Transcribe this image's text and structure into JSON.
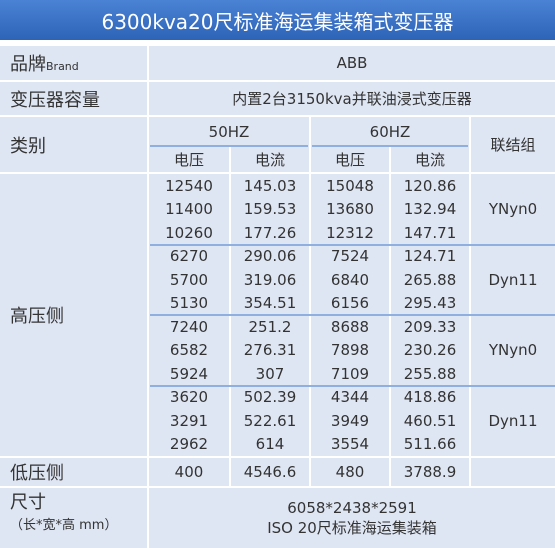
{
  "title": "6300kva20尺标准海运集装箱式变压器",
  "brand": {
    "label": "品牌",
    "label_sub": "Brand",
    "value": "ABB"
  },
  "capacity": {
    "label": "变压器容量",
    "value": "内置2台3150kva并联油浸式变压器"
  },
  "category": {
    "label": "类别",
    "freq": [
      "50HZ",
      "60HZ"
    ],
    "sub": [
      "电压",
      "电流",
      "电压",
      "电流"
    ],
    "group_label": "联结组"
  },
  "high": {
    "label": "高压侧",
    "groups": [
      {
        "connection": "YNyn0",
        "rows": [
          [
            "12540",
            "145.03",
            "15048",
            "120.86"
          ],
          [
            "11400",
            "159.53",
            "13680",
            "132.94"
          ],
          [
            "10260",
            "177.26",
            "12312",
            "147.71"
          ]
        ]
      },
      {
        "connection": "Dyn11",
        "rows": [
          [
            "6270",
            "290.06",
            "7524",
            "124.71"
          ],
          [
            "5700",
            "319.06",
            "6840",
            "265.88"
          ],
          [
            "5130",
            "354.51",
            "6156",
            "295.43"
          ]
        ]
      },
      {
        "connection": "YNyn0",
        "rows": [
          [
            "7240",
            "251.2",
            "8688",
            "209.33"
          ],
          [
            "6582",
            "276.31",
            "7898",
            "230.26"
          ],
          [
            "5924",
            "307",
            "7109",
            "255.88"
          ]
        ]
      },
      {
        "connection": "Dyn11",
        "rows": [
          [
            "3620",
            "502.39",
            "4344",
            "418.86"
          ],
          [
            "3291",
            "522.61",
            "3949",
            "460.51"
          ],
          [
            "2962",
            "614",
            "3554",
            "511.66"
          ]
        ]
      }
    ]
  },
  "low": {
    "label": "低压侧",
    "row": [
      "400",
      "4546.6",
      "480",
      "3788.9"
    ]
  },
  "size": {
    "label": "尺寸",
    "unit": "（长*宽*高 mm）",
    "lines": [
      "6058*2438*2591",
      "ISO 20尺标准海运集装箱"
    ]
  }
}
